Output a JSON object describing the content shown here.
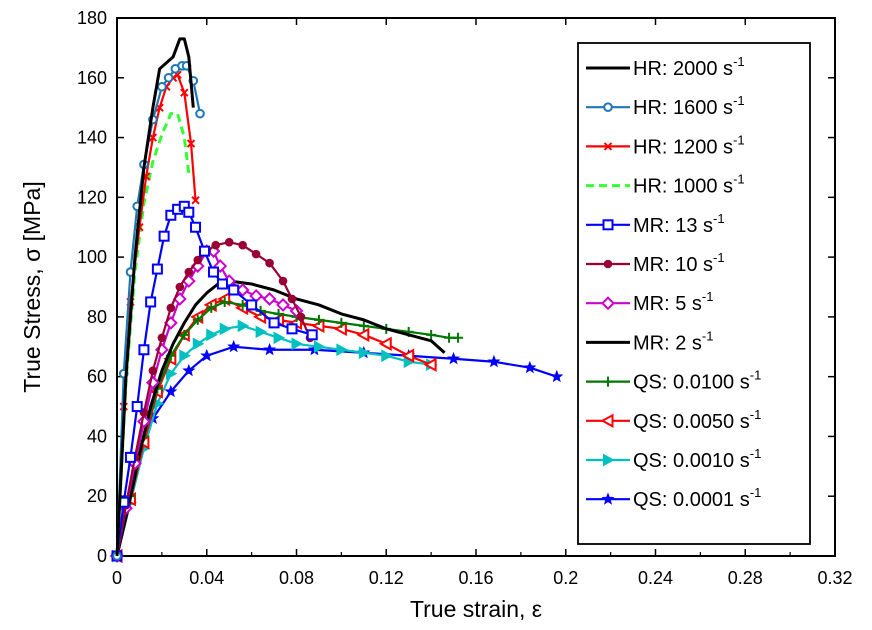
{
  "chart_data": {
    "type": "line",
    "title": "",
    "xlabel": "True strain, ε",
    "ylabel": "True Stress, σ [MPa]",
    "xlim": [
      0,
      0.32
    ],
    "ylim": [
      0,
      180
    ],
    "x_ticks": [
      0,
      0.04,
      0.08,
      0.12,
      0.16,
      0.2,
      0.24,
      0.28,
      0.32
    ],
    "x_tick_labels": [
      "0",
      "0.04",
      "0.08",
      "0.12",
      "0.16",
      "0.2",
      "0.24",
      "0.28",
      "0.32"
    ],
    "y_ticks": [
      0,
      20,
      40,
      60,
      80,
      100,
      120,
      140,
      160,
      180
    ],
    "y_tick_labels": [
      "0",
      "20",
      "40",
      "60",
      "80",
      "100",
      "120",
      "140",
      "160",
      "180"
    ],
    "grid": false,
    "legend_position": "right",
    "series": [
      {
        "name": "HR:  2000 s",
        "unit_sup": "-1",
        "color": "#000000",
        "dash": "",
        "marker": "none",
        "x": [
          0,
          0.004,
          0.008,
          0.012,
          0.016,
          0.019,
          0.022,
          0.025,
          0.028,
          0.03,
          0.032,
          0.034
        ],
        "y": [
          0,
          60,
          100,
          130,
          150,
          163,
          165,
          167,
          173,
          173,
          167,
          150
        ]
      },
      {
        "name": "HR:  1600 s",
        "unit_sup": "-1",
        "color": "#1f77b4",
        "dash": "",
        "marker": "circle",
        "x": [
          0,
          0.003,
          0.006,
          0.009,
          0.012,
          0.016,
          0.02,
          0.023,
          0.026,
          0.029,
          0.031,
          0.034,
          0.037
        ],
        "y": [
          0,
          61,
          95,
          117,
          131,
          146,
          157,
          160,
          163,
          164,
          164,
          159,
          148
        ]
      },
      {
        "name": "HR:  1200 s",
        "unit_sup": "-1",
        "color": "#ff0000",
        "dash": "",
        "marker": "x",
        "x": [
          0,
          0.003,
          0.006,
          0.01,
          0.013,
          0.016,
          0.019,
          0.022,
          0.025,
          0.027,
          0.03,
          0.033,
          0.035
        ],
        "y": [
          0,
          50,
          85,
          110,
          127,
          140,
          150,
          157,
          160,
          161,
          155,
          138,
          119
        ]
      },
      {
        "name": "HR:  1000 s",
        "unit_sup": "-1",
        "color": "#33ff33",
        "dash": "8,5",
        "marker": "none",
        "x": [
          0,
          0.004,
          0.008,
          0.012,
          0.016,
          0.02,
          0.024,
          0.027,
          0.03,
          0.032
        ],
        "y": [
          0,
          58,
          95,
          118,
          132,
          141,
          148,
          148,
          140,
          128
        ]
      },
      {
        "name": "MR:  13 s",
        "unit_sup": "-1",
        "color": "#0000ff",
        "dash": "",
        "marker": "square",
        "x": [
          0,
          0.003,
          0.006,
          0.009,
          0.012,
          0.015,
          0.018,
          0.021,
          0.024,
          0.027,
          0.03,
          0.032,
          0.035,
          0.039,
          0.043,
          0.047,
          0.052,
          0.06,
          0.07,
          0.078,
          0.087
        ],
        "y": [
          0,
          18,
          33,
          50,
          69,
          85,
          96,
          107,
          114,
          116,
          117,
          115,
          110,
          102,
          95,
          91,
          89,
          84,
          78,
          76,
          74
        ]
      },
      {
        "name": "MR:  10 s",
        "unit_sup": "-1",
        "color": "#990033",
        "dash": "",
        "marker": "circle-filled",
        "x": [
          0,
          0.004,
          0.008,
          0.012,
          0.016,
          0.02,
          0.024,
          0.028,
          0.032,
          0.036,
          0.04,
          0.044,
          0.05,
          0.056,
          0.062,
          0.068,
          0.074,
          0.078,
          0.082,
          0.086
        ],
        "y": [
          0,
          17,
          33,
          48,
          62,
          73,
          83,
          90,
          95,
          99,
          102,
          104,
          105,
          104,
          101,
          98,
          92,
          86,
          80,
          73
        ]
      },
      {
        "name": "MR:  5 s",
        "unit_sup": "-1",
        "color": "#cc00cc",
        "dash": "",
        "marker": "diamond",
        "x": [
          0,
          0.004,
          0.008,
          0.012,
          0.016,
          0.02,
          0.024,
          0.028,
          0.032,
          0.036,
          0.04,
          0.043,
          0.046,
          0.05,
          0.056,
          0.062,
          0.068,
          0.074,
          0.08
        ],
        "y": [
          0,
          16,
          31,
          45,
          58,
          69,
          78,
          86,
          92,
          97,
          102,
          102,
          97,
          92,
          89,
          87,
          86,
          84,
          82
        ]
      },
      {
        "name": "MR:  2 s",
        "unit_sup": "-1",
        "color": "#000000",
        "dash": "",
        "marker": "none",
        "x": [
          0,
          0.005,
          0.01,
          0.015,
          0.02,
          0.025,
          0.03,
          0.035,
          0.04,
          0.045,
          0.05,
          0.06,
          0.07,
          0.08,
          0.09,
          0.1,
          0.11,
          0.12,
          0.13,
          0.14,
          0.146
        ],
        "y": [
          0,
          16,
          34,
          50,
          62,
          71,
          78,
          84,
          88,
          91,
          92,
          91,
          89,
          86,
          84,
          81,
          79,
          76,
          74,
          72,
          68
        ]
      },
      {
        "name": "QS:  0.0100 s",
        "unit_sup": "-1",
        "color": "#007700",
        "dash": "",
        "marker": "plus",
        "x": [
          0,
          0.006,
          0.012,
          0.018,
          0.024,
          0.03,
          0.036,
          0.042,
          0.048,
          0.056,
          0.064,
          0.072,
          0.08,
          0.09,
          0.1,
          0.11,
          0.12,
          0.13,
          0.14,
          0.148,
          0.152
        ],
        "y": [
          0,
          20,
          40,
          56,
          67,
          74,
          79,
          83,
          85,
          84,
          82,
          81,
          80,
          79,
          78,
          77,
          76,
          75,
          74,
          73,
          73
        ]
      },
      {
        "name": "QS:  0.0050 s",
        "unit_sup": "-1",
        "color": "#ff0000",
        "dash": "",
        "marker": "tri-left",
        "x": [
          0,
          0.006,
          0.012,
          0.018,
          0.024,
          0.03,
          0.036,
          0.042,
          0.048,
          0.056,
          0.064,
          0.072,
          0.08,
          0.09,
          0.1,
          0.11,
          0.12,
          0.13,
          0.14
        ],
        "y": [
          0,
          19,
          38,
          55,
          66,
          74,
          80,
          84,
          86,
          83,
          80,
          79,
          78,
          77,
          76,
          74,
          71,
          67,
          64
        ]
      },
      {
        "name": "QS:  0.0010 s",
        "unit_sup": "-1",
        "color": "#00c0c0",
        "dash": "",
        "marker": "tri-right",
        "x": [
          0,
          0.006,
          0.012,
          0.018,
          0.024,
          0.03,
          0.036,
          0.042,
          0.048,
          0.056,
          0.064,
          0.072,
          0.08,
          0.09,
          0.1,
          0.11,
          0.12,
          0.13,
          0.14
        ],
        "y": [
          0,
          18,
          36,
          51,
          61,
          67,
          71,
          74,
          76,
          77,
          75,
          73,
          71,
          70,
          69,
          68,
          67,
          65,
          64
        ]
      },
      {
        "name": "QS:  0.0001 s",
        "unit_sup": "-1",
        "color": "#0000ff",
        "dash": "",
        "marker": "star",
        "x": [
          0,
          0.008,
          0.016,
          0.024,
          0.032,
          0.04,
          0.052,
          0.068,
          0.088,
          0.11,
          0.13,
          0.15,
          0.168,
          0.184,
          0.196
        ],
        "y": [
          0,
          30,
          46,
          55,
          62,
          67,
          70,
          69,
          69,
          68,
          67,
          66,
          65,
          63,
          60
        ]
      }
    ]
  }
}
